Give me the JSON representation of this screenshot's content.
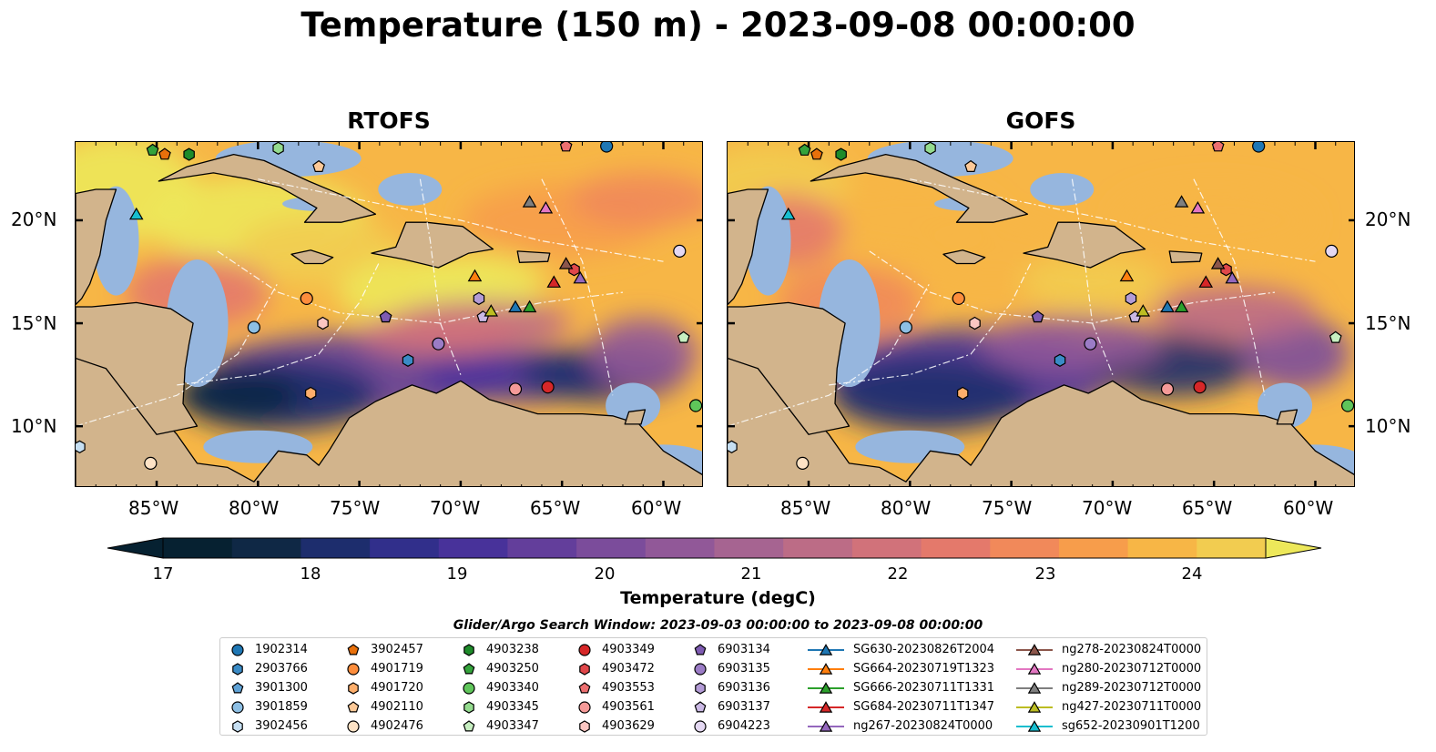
{
  "title": "Temperature (150 m) - 2023-09-08 00:00:00",
  "panels": [
    {
      "title": "RTOFS"
    },
    {
      "title": "GOFS"
    }
  ],
  "x_ticks": [
    "85°W",
    "80°W",
    "75°W",
    "70°W",
    "65°W",
    "60°W"
  ],
  "y_ticks": [
    "20°N",
    "15°N",
    "10°N"
  ],
  "colorbar": {
    "label": "Temperature (degC)",
    "min": 16.5,
    "max": 24.5,
    "step": 0.5,
    "ticks": [
      "17",
      "18",
      "19",
      "20",
      "21",
      "22",
      "23",
      "24"
    ],
    "colors": [
      "#062131",
      "#0f2845",
      "#1d2d6d",
      "#312f8b",
      "#48329a",
      "#633e9b",
      "#7b4c9b",
      "#915898",
      "#a66491",
      "#bc6c86",
      "#d1727a",
      "#e4796b",
      "#f1895a",
      "#f79d4b",
      "#f7b646",
      "#f2cc50",
      "#ede85a"
    ],
    "extend": "both"
  },
  "map_colors": {
    "land": "#d2b48c",
    "shallow": "#96b6de"
  },
  "legend": {
    "title": "Glider/Argo Search Window: 2023-09-03 00:00:00 to 2023-09-08 00:00:00",
    "entries": [
      {
        "label": "1902314",
        "shape": "circle",
        "color": "#1f77b4"
      },
      {
        "label": "2903766",
        "shape": "hexagon",
        "color": "#3a8bc6"
      },
      {
        "label": "3901300",
        "shape": "pentagon",
        "color": "#5fa2d6"
      },
      {
        "label": "3901859",
        "shape": "circle",
        "color": "#8dbfe4"
      },
      {
        "label": "3902456",
        "shape": "hexagon",
        "color": "#c6dff2"
      },
      {
        "label": "3902457",
        "shape": "pentagon",
        "color": "#e8700b"
      },
      {
        "label": "4901719",
        "shape": "circle",
        "color": "#fd8d3c"
      },
      {
        "label": "4901720",
        "shape": "hexagon",
        "color": "#fdae6b"
      },
      {
        "label": "4902110",
        "shape": "pentagon",
        "color": "#fdc997"
      },
      {
        "label": "4902476",
        "shape": "circle",
        "color": "#fee3c6"
      },
      {
        "label": "4903238",
        "shape": "hexagon",
        "color": "#1e8b2a"
      },
      {
        "label": "4903250",
        "shape": "pentagon",
        "color": "#34a33b"
      },
      {
        "label": "4903340",
        "shape": "circle",
        "color": "#5fc55a"
      },
      {
        "label": "4903345",
        "shape": "hexagon",
        "color": "#94db8e"
      },
      {
        "label": "4903347",
        "shape": "pentagon",
        "color": "#c7efc1"
      },
      {
        "label": "4903349",
        "shape": "circle",
        "color": "#d62728"
      },
      {
        "label": "4903472",
        "shape": "hexagon",
        "color": "#e0474a"
      },
      {
        "label": "4903553",
        "shape": "pentagon",
        "color": "#ec6f70"
      },
      {
        "label": "4903561",
        "shape": "circle",
        "color": "#f59a98"
      },
      {
        "label": "4903629",
        "shape": "hexagon",
        "color": "#fbc6c2"
      },
      {
        "label": "6903134",
        "shape": "pentagon",
        "color": "#7e5bb2"
      },
      {
        "label": "6903135",
        "shape": "circle",
        "color": "#9b7cc6"
      },
      {
        "label": "6903136",
        "shape": "hexagon",
        "color": "#b39bd6"
      },
      {
        "label": "6903137",
        "shape": "pentagon",
        "color": "#cbb9e5"
      },
      {
        "label": "6904223",
        "shape": "circle",
        "color": "#e4d8f2"
      },
      {
        "label": "SG630-20230826T2004",
        "shape": "triangle",
        "color": "#1f77b4"
      },
      {
        "label": "SG664-20230719T1323",
        "shape": "triangle",
        "color": "#ff7f0e"
      },
      {
        "label": "SG666-20230711T1331",
        "shape": "triangle",
        "color": "#2ca02c"
      },
      {
        "label": "SG684-20230711T1347",
        "shape": "triangle",
        "color": "#d62728"
      },
      {
        "label": "ng267-20230824T0000",
        "shape": "triangle",
        "color": "#9467bd"
      },
      {
        "label": "ng278-20230824T0000",
        "shape": "triangle",
        "color": "#8c564b"
      },
      {
        "label": "ng280-20230712T0000",
        "shape": "triangle",
        "color": "#e377c2"
      },
      {
        "label": "ng289-20230712T0000",
        "shape": "triangle",
        "color": "#7f7f7f"
      },
      {
        "label": "ng427-20230711T0000",
        "shape": "triangle",
        "color": "#bcbd22"
      },
      {
        "label": "sg652-20230901T1200",
        "shape": "triangle",
        "color": "#17becf"
      }
    ]
  }
}
